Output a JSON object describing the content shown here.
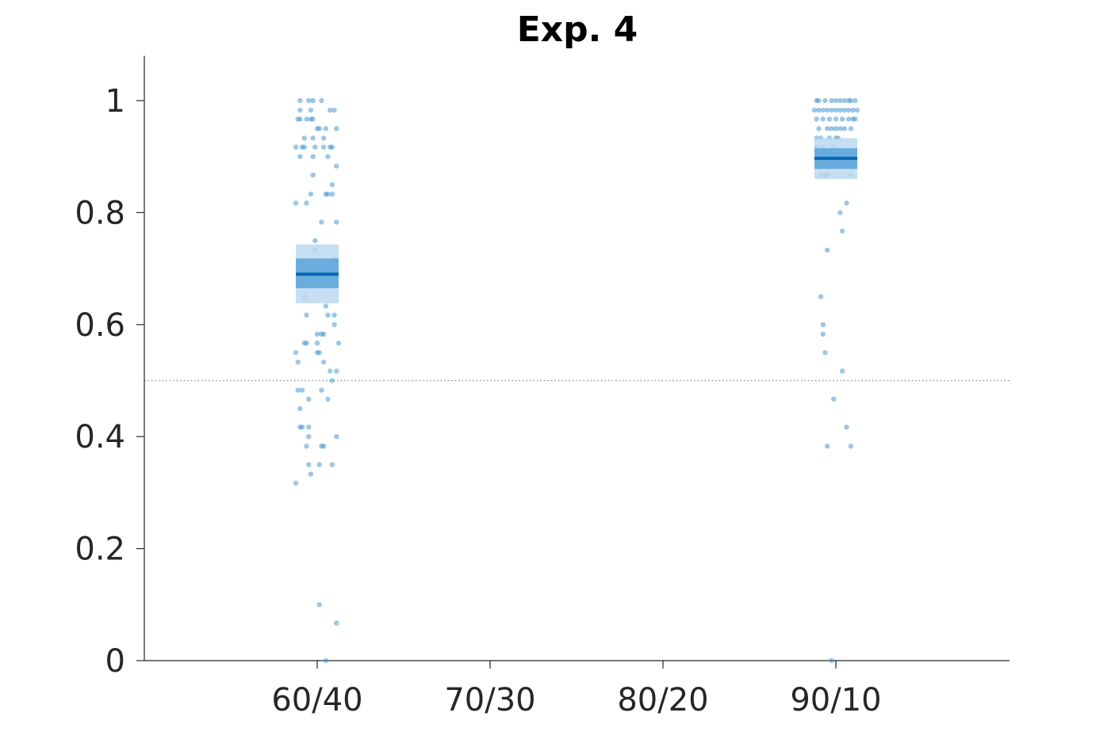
{
  "chart_data": {
    "type": "scatter",
    "title": "Exp. 4",
    "xlabel": "",
    "ylabel": "",
    "categories": [
      "60/40",
      "70/30",
      "80/20",
      "90/10"
    ],
    "y_ticks": [
      0,
      0.2,
      0.4,
      0.6,
      0.8,
      1
    ],
    "y_tick_labels": [
      "0",
      "0.2",
      "0.4",
      "0.6",
      "0.8",
      "1"
    ],
    "ylim": [
      0,
      1.08
    ],
    "reference_line": 0.5,
    "grid": false,
    "colors": {
      "points": "#3a8fd0",
      "mean": "#0868b6",
      "band_inner": "#5ea6dc",
      "band_outer": "#bcd8ee",
      "ref_line": "#8a8a8a"
    },
    "groups": [
      {
        "category": "60/40",
        "mean": 0.69,
        "ci_inner": [
          0.665,
          0.718
        ],
        "ci_outer": [
          0.638,
          0.743
        ],
        "points": [
          [
            -0.08,
            1
          ],
          [
            -0.04,
            1
          ],
          [
            -0.02,
            1
          ],
          [
            0.02,
            1
          ],
          [
            0.06,
            0.983
          ],
          [
            0.08,
            0.983
          ],
          [
            -0.08,
            0.983
          ],
          [
            -0.03,
            0.983
          ],
          [
            -0.09,
            0.967
          ],
          [
            -0.08,
            0.967
          ],
          [
            -0.05,
            0.967
          ],
          [
            -0.03,
            0.967
          ],
          [
            -0.02,
            0.967
          ],
          [
            0.0,
            0.95
          ],
          [
            0.01,
            0.95
          ],
          [
            0.04,
            0.95
          ],
          [
            0.09,
            0.95
          ],
          [
            -0.06,
            0.933
          ],
          [
            -0.02,
            0.933
          ],
          [
            0.03,
            0.933
          ],
          [
            -0.1,
            0.917
          ],
          [
            -0.07,
            0.917
          ],
          [
            -0.06,
            0.917
          ],
          [
            -0.01,
            0.917
          ],
          [
            0.03,
            0.917
          ],
          [
            0.06,
            0.917
          ],
          [
            0.07,
            0.917
          ],
          [
            -0.08,
            0.9
          ],
          [
            -0.02,
            0.9
          ],
          [
            0.05,
            0.9
          ],
          [
            0.09,
            0.883
          ],
          [
            -0.02,
            0.867
          ],
          [
            0.07,
            0.85
          ],
          [
            -0.03,
            0.833
          ],
          [
            0.04,
            0.833
          ],
          [
            0.05,
            0.833
          ],
          [
            0.07,
            0.833
          ],
          [
            -0.1,
            0.817
          ],
          [
            -0.05,
            0.817
          ],
          [
            0.02,
            0.783
          ],
          [
            0.09,
            0.783
          ],
          [
            -0.01,
            0.75
          ],
          [
            -0.01,
            0.733
          ],
          [
            0.08,
            0.717
          ],
          [
            -0.06,
            0.65
          ],
          [
            0.04,
            0.633
          ],
          [
            -0.05,
            0.617
          ],
          [
            0.05,
            0.617
          ],
          [
            0.08,
            0.617
          ],
          [
            0.08,
            0.6
          ],
          [
            0.0,
            0.583
          ],
          [
            0.02,
            0.583
          ],
          [
            0.03,
            0.583
          ],
          [
            -0.06,
            0.567
          ],
          [
            -0.05,
            0.567
          ],
          [
            0.0,
            0.567
          ],
          [
            0.1,
            0.567
          ],
          [
            -0.1,
            0.55
          ],
          [
            0.0,
            0.55
          ],
          [
            0.01,
            0.55
          ],
          [
            -0.09,
            0.533
          ],
          [
            0.03,
            0.533
          ],
          [
            0.06,
            0.517
          ],
          [
            0.09,
            0.517
          ],
          [
            0.07,
            0.5
          ],
          [
            -0.09,
            0.483
          ],
          [
            -0.07,
            0.483
          ],
          [
            0.02,
            0.483
          ],
          [
            -0.08,
            0.45
          ],
          [
            -0.04,
            0.467
          ],
          [
            0.05,
            0.467
          ],
          [
            -0.08,
            0.417
          ],
          [
            -0.07,
            0.417
          ],
          [
            -0.04,
            0.417
          ],
          [
            -0.04,
            0.4
          ],
          [
            0.09,
            0.4
          ],
          [
            -0.05,
            0.383
          ],
          [
            0.02,
            0.383
          ],
          [
            0.03,
            0.383
          ],
          [
            -0.04,
            0.35
          ],
          [
            0.01,
            0.35
          ],
          [
            0.07,
            0.35
          ],
          [
            -0.03,
            0.333
          ],
          [
            -0.1,
            0.317
          ],
          [
            0.01,
            0.1
          ],
          [
            0.09,
            0.067
          ],
          [
            0.04,
            0.0
          ]
        ]
      },
      {
        "category": "90/10",
        "mean": 0.897,
        "ci_inner": [
          0.878,
          0.915
        ],
        "ci_outer": [
          0.86,
          0.933
        ],
        "points": [
          [
            -0.09,
            1
          ],
          [
            -0.08,
            1
          ],
          [
            -0.05,
            1
          ],
          [
            -0.02,
            1
          ],
          [
            0.0,
            1
          ],
          [
            0.02,
            1
          ],
          [
            0.04,
            1
          ],
          [
            0.06,
            1
          ],
          [
            0.07,
            1
          ],
          [
            0.09,
            1
          ],
          [
            -0.1,
            0.983
          ],
          [
            -0.08,
            0.983
          ],
          [
            -0.06,
            0.983
          ],
          [
            -0.04,
            0.983
          ],
          [
            -0.02,
            0.983
          ],
          [
            0.0,
            0.983
          ],
          [
            0.02,
            0.983
          ],
          [
            0.04,
            0.983
          ],
          [
            0.06,
            0.983
          ],
          [
            0.08,
            0.983
          ],
          [
            0.1,
            0.983
          ],
          [
            -0.09,
            0.967
          ],
          [
            -0.06,
            0.967
          ],
          [
            -0.03,
            0.967
          ],
          [
            0.0,
            0.967
          ],
          [
            0.03,
            0.967
          ],
          [
            0.06,
            0.967
          ],
          [
            0.08,
            0.967
          ],
          [
            0.09,
            0.967
          ],
          [
            -0.08,
            0.95
          ],
          [
            -0.04,
            0.95
          ],
          [
            -0.02,
            0.95
          ],
          [
            0.0,
            0.95
          ],
          [
            0.02,
            0.95
          ],
          [
            0.04,
            0.95
          ],
          [
            0.07,
            0.95
          ],
          [
            -0.09,
            0.933
          ],
          [
            -0.07,
            0.933
          ],
          [
            -0.03,
            0.933
          ],
          [
            0.0,
            0.933
          ],
          [
            0.01,
            0.933
          ],
          [
            -0.09,
            0.917
          ],
          [
            -0.06,
            0.917
          ],
          [
            -0.01,
            0.917
          ],
          [
            -0.08,
            0.9
          ],
          [
            -0.05,
            0.9
          ],
          [
            0.08,
            0.9
          ],
          [
            -0.08,
            0.883
          ],
          [
            -0.03,
            0.883
          ],
          [
            -0.07,
            0.867
          ],
          [
            -0.05,
            0.867
          ],
          [
            -0.04,
            0.867
          ],
          [
            0.07,
            0.867
          ],
          [
            0.05,
            0.817
          ],
          [
            0.02,
            0.8
          ],
          [
            0.03,
            0.767
          ],
          [
            -0.04,
            0.733
          ],
          [
            -0.07,
            0.65
          ],
          [
            -0.06,
            0.6
          ],
          [
            -0.06,
            0.583
          ],
          [
            -0.05,
            0.55
          ],
          [
            0.03,
            0.517
          ],
          [
            -0.01,
            0.467
          ],
          [
            0.05,
            0.417
          ],
          [
            -0.04,
            0.383
          ],
          [
            0.07,
            0.383
          ],
          [
            -0.02,
            0.0
          ]
        ]
      }
    ]
  }
}
